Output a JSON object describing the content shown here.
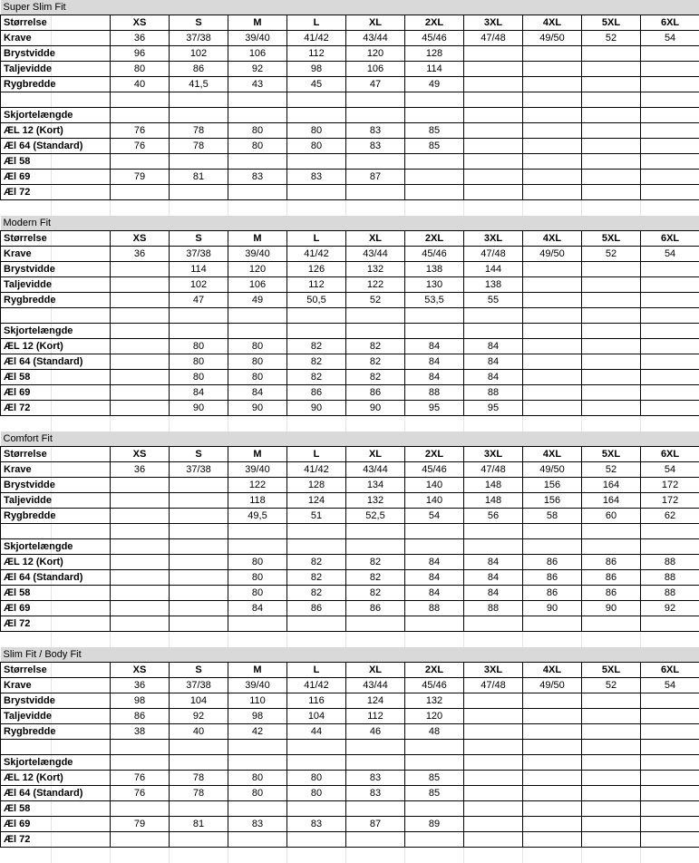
{
  "sections": [
    {
      "title": "Super Slim Fit",
      "rows": [
        {
          "label": "Størrelse",
          "cells": [
            "XS",
            "S",
            "M",
            "L",
            "XL",
            "2XL",
            "3XL",
            "4XL",
            "5XL",
            "6XL"
          ]
        },
        {
          "label": "Krave",
          "cells": [
            "36",
            "37/38",
            "39/40",
            "41/42",
            "43/44",
            "45/46",
            "47/48",
            "49/50",
            "52",
            "54"
          ]
        },
        {
          "label": "Brystvidde",
          "cells": [
            "96",
            "102",
            "106",
            "112",
            "120",
            "128",
            "",
            "",
            "",
            ""
          ]
        },
        {
          "label": "Taljevidde",
          "cells": [
            "80",
            "86",
            "92",
            "98",
            "106",
            "114",
            "",
            "",
            "",
            ""
          ]
        },
        {
          "label": "Rygbredde",
          "cells": [
            "40",
            "41,5",
            "43",
            "45",
            "47",
            "49",
            "",
            "",
            "",
            ""
          ]
        },
        {
          "label": "",
          "cells": [
            "",
            "",
            "",
            "",
            "",
            "",
            "",
            "",
            "",
            ""
          ]
        },
        {
          "label": "Skjortelængde",
          "cells": [
            "",
            "",
            "",
            "",
            "",
            "",
            "",
            "",
            "",
            ""
          ]
        },
        {
          "label": "ÆL 12 (Kort)",
          "cells": [
            "76",
            "78",
            "80",
            "80",
            "83",
            "85",
            "",
            "",
            "",
            ""
          ]
        },
        {
          "label": "Æl 64 (Standard)",
          "cells": [
            "76",
            "78",
            "80",
            "80",
            "83",
            "85",
            "",
            "",
            "",
            ""
          ]
        },
        {
          "label": "Æl 58",
          "cells": [
            "",
            "",
            "",
            "",
            "",
            "",
            "",
            "",
            "",
            ""
          ]
        },
        {
          "label": "Æl 69",
          "cells": [
            "79",
            "81",
            "83",
            "83",
            "87",
            "",
            "",
            "",
            "",
            ""
          ]
        },
        {
          "label": "Æl 72",
          "cells": [
            "",
            "",
            "",
            "",
            "",
            "",
            "",
            "",
            "",
            ""
          ]
        }
      ]
    },
    {
      "title": "Modern Fit",
      "rows": [
        {
          "label": "Størrelse",
          "cells": [
            "XS",
            "S",
            "M",
            "L",
            "XL",
            "2XL",
            "3XL",
            "4XL",
            "5XL",
            "6XL"
          ]
        },
        {
          "label": "Krave",
          "cells": [
            "36",
            "37/38",
            "39/40",
            "41/42",
            "43/44",
            "45/46",
            "47/48",
            "49/50",
            "52",
            "54"
          ]
        },
        {
          "label": "Brystvidde",
          "cells": [
            "",
            "114",
            "120",
            "126",
            "132",
            "138",
            "144",
            "",
            "",
            ""
          ]
        },
        {
          "label": "Taljevidde",
          "cells": [
            "",
            "102",
            "106",
            "112",
            "122",
            "130",
            "138",
            "",
            "",
            ""
          ]
        },
        {
          "label": "Rygbredde",
          "cells": [
            "",
            "47",
            "49",
            "50,5",
            "52",
            "53,5",
            "55",
            "",
            "",
            ""
          ]
        },
        {
          "label": "",
          "cells": [
            "",
            "",
            "",
            "",
            "",
            "",
            "",
            "",
            "",
            ""
          ]
        },
        {
          "label": "Skjortelængde",
          "cells": [
            "",
            "",
            "",
            "",
            "",
            "",
            "",
            "",
            "",
            ""
          ]
        },
        {
          "label": "ÆL 12 (Kort)",
          "cells": [
            "",
            "80",
            "80",
            "82",
            "82",
            "84",
            "84",
            "",
            "",
            ""
          ]
        },
        {
          "label": "Æl 64 (Standard)",
          "cells": [
            "",
            "80",
            "80",
            "82",
            "82",
            "84",
            "84",
            "",
            "",
            ""
          ]
        },
        {
          "label": "Æl 58",
          "cells": [
            "",
            "80",
            "80",
            "82",
            "82",
            "84",
            "84",
            "",
            "",
            ""
          ]
        },
        {
          "label": "Æl 69",
          "cells": [
            "",
            "84",
            "84",
            "86",
            "86",
            "88",
            "88",
            "",
            "",
            ""
          ]
        },
        {
          "label": "Æl 72",
          "cells": [
            "",
            "90",
            "90",
            "90",
            "90",
            "95",
            "95",
            "",
            "",
            ""
          ]
        }
      ]
    },
    {
      "title": "Comfort Fit",
      "rows": [
        {
          "label": "Størrelse",
          "cells": [
            "XS",
            "S",
            "M",
            "L",
            "XL",
            "2XL",
            "3XL",
            "4XL",
            "5XL",
            "6XL"
          ]
        },
        {
          "label": "Krave",
          "cells": [
            "36",
            "37/38",
            "39/40",
            "41/42",
            "43/44",
            "45/46",
            "47/48",
            "49/50",
            "52",
            "54"
          ]
        },
        {
          "label": "Brystvidde",
          "cells": [
            "",
            "",
            "122",
            "128",
            "134",
            "140",
            "148",
            "156",
            "164",
            "172"
          ]
        },
        {
          "label": "Taljevidde",
          "cells": [
            "",
            "",
            "118",
            "124",
            "132",
            "140",
            "148",
            "156",
            "164",
            "172"
          ]
        },
        {
          "label": "Rygbredde",
          "cells": [
            "",
            "",
            "49,5",
            "51",
            "52,5",
            "54",
            "56",
            "58",
            "60",
            "62"
          ]
        },
        {
          "label": "",
          "cells": [
            "",
            "",
            "",
            "",
            "",
            "",
            "",
            "",
            "",
            ""
          ]
        },
        {
          "label": "Skjortelængde",
          "cells": [
            "",
            "",
            "",
            "",
            "",
            "",
            "",
            "",
            "",
            ""
          ]
        },
        {
          "label": "ÆL 12 (Kort)",
          "cells": [
            "",
            "",
            "80",
            "82",
            "82",
            "84",
            "84",
            "86",
            "86",
            "88"
          ]
        },
        {
          "label": "Æl 64 (Standard)",
          "cells": [
            "",
            "",
            "80",
            "82",
            "82",
            "84",
            "84",
            "86",
            "86",
            "88"
          ]
        },
        {
          "label": "Æl 58",
          "cells": [
            "",
            "",
            "80",
            "82",
            "82",
            "84",
            "84",
            "86",
            "86",
            "88"
          ]
        },
        {
          "label": "Æl 69",
          "cells": [
            "",
            "",
            "84",
            "86",
            "86",
            "88",
            "88",
            "90",
            "90",
            "92"
          ]
        },
        {
          "label": "Æl 72",
          "cells": [
            "",
            "",
            "",
            "",
            "",
            "",
            "",
            "",
            "",
            ""
          ]
        }
      ]
    },
    {
      "title": "Slim Fit / Body Fit",
      "rows": [
        {
          "label": "Størrelse",
          "cells": [
            "XS",
            "S",
            "M",
            "L",
            "XL",
            "2XL",
            "3XL",
            "4XL",
            "5XL",
            "6XL"
          ]
        },
        {
          "label": "Krave",
          "cells": [
            "36",
            "37/38",
            "39/40",
            "41/42",
            "43/44",
            "45/46",
            "47/48",
            "49/50",
            "52",
            "54"
          ]
        },
        {
          "label": "Brystvidde",
          "cells": [
            "98",
            "104",
            "110",
            "116",
            "124",
            "132",
            "",
            "",
            "",
            ""
          ]
        },
        {
          "label": "Taljevidde",
          "cells": [
            "86",
            "92",
            "98",
            "104",
            "112",
            "120",
            "",
            "",
            "",
            ""
          ]
        },
        {
          "label": "Rygbredde",
          "cells": [
            "38",
            "40",
            "42",
            "44",
            "46",
            "48",
            "",
            "",
            "",
            ""
          ]
        },
        {
          "label": "",
          "cells": [
            "",
            "",
            "",
            "",
            "",
            "",
            "",
            "",
            "",
            ""
          ]
        },
        {
          "label": "Skjortelængde",
          "cells": [
            "",
            "",
            "",
            "",
            "",
            "",
            "",
            "",
            "",
            ""
          ]
        },
        {
          "label": "ÆL 12 (Kort)",
          "cells": [
            "76",
            "78",
            "80",
            "80",
            "83",
            "85",
            "",
            "",
            "",
            ""
          ]
        },
        {
          "label": "Æl 64 (Standard)",
          "cells": [
            "76",
            "78",
            "80",
            "80",
            "83",
            "85",
            "",
            "",
            "",
            ""
          ]
        },
        {
          "label": "Æl 58",
          "cells": [
            "",
            "",
            "",
            "",
            "",
            "",
            "",
            "",
            "",
            ""
          ]
        },
        {
          "label": "Æl 69",
          "cells": [
            "79",
            "81",
            "83",
            "83",
            "87",
            "89",
            "",
            "",
            "",
            ""
          ]
        },
        {
          "label": "Æl 72",
          "cells": [
            "",
            "",
            "",
            "",
            "",
            "",
            "",
            "",
            "",
            ""
          ]
        }
      ]
    }
  ],
  "colors": {
    "section_header_bg": "#d9d9d9",
    "border": "#000000",
    "gridline": "#e4e4e4"
  }
}
